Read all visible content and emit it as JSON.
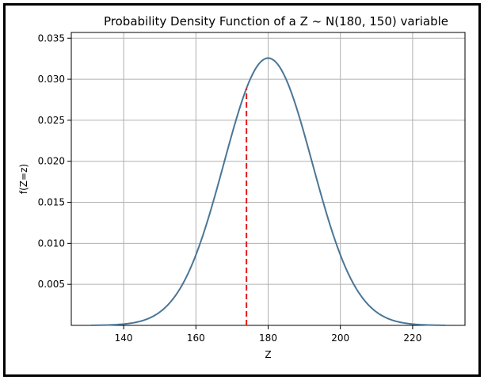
{
  "chart_data": {
    "type": "line",
    "title": "Probability Density Function of a Z ~ N(180, 150) variable",
    "xlabel": "Z",
    "ylabel": "f(Z=z)",
    "mean": 180,
    "variance": 150,
    "xlim": [
      125.5,
      234.5
    ],
    "ylim": [
      0,
      0.0357
    ],
    "x_range": [
      131,
      229
    ],
    "x_ticks": [
      140,
      160,
      180,
      200,
      220
    ],
    "y_ticks": [
      0.005,
      0.01,
      0.015,
      0.02,
      0.025,
      0.03,
      0.035
    ],
    "x_tick_labels": [
      "140",
      "160",
      "180",
      "200",
      "220"
    ],
    "y_tick_labels": [
      "0.005",
      "0.010",
      "0.015",
      "0.020",
      "0.025",
      "0.030",
      "0.035"
    ],
    "grid": true,
    "line_color": "#4a7696",
    "marker": {
      "type": "dashed-vertical-line",
      "x": 174,
      "y_top": 0.0289,
      "color": "#e31a1c"
    }
  }
}
